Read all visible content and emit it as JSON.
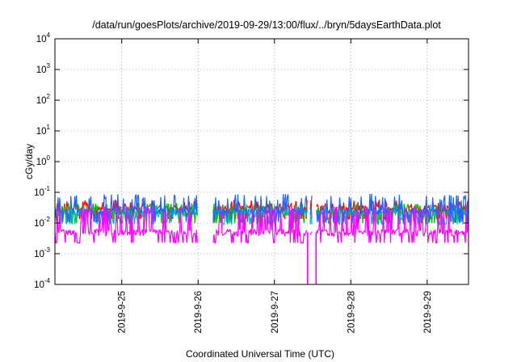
{
  "chart_data": {
    "type": "line",
    "title": "/data/run/goesPlots/archive/2019-09-29/13:00/flux/../bryn/5daysEarthData.plot",
    "xlabel": "Coordinated Universal Time (UTC)",
    "ylabel": "cGy/day",
    "yscale": "log",
    "ylim": [
      0.0001,
      10000
    ],
    "y_ticks": [
      {
        "base": "10",
        "exp": "-4",
        "value": 0.0001
      },
      {
        "base": "10",
        "exp": "-3",
        "value": 0.001
      },
      {
        "base": "10",
        "exp": "-2",
        "value": 0.01
      },
      {
        "base": "10",
        "exp": "-1",
        "value": 0.1
      },
      {
        "base": "10",
        "exp": "0",
        "value": 1
      },
      {
        "base": "10",
        "exp": "1",
        "value": 10
      },
      {
        "base": "10",
        "exp": "2",
        "value": 100
      },
      {
        "base": "10",
        "exp": "3",
        "value": 1000
      },
      {
        "base": "10",
        "exp": "4",
        "value": 10000
      }
    ],
    "xlim": [
      "2019-09-24T03:00",
      "2019-09-29T13:00"
    ],
    "x_ticks": [
      "2019-9-25",
      "2019-9-26",
      "2019-9-27",
      "2019-9-28",
      "2019-9-29"
    ],
    "grid": true,
    "legend": "none",
    "data_gaps": [
      [
        "2019-09-26T00:00",
        "2019-09-26T04:30"
      ],
      [
        "2019-09-27T10:30",
        "2019-09-27T11:00"
      ],
      [
        "2019-09-27T12:00",
        "2019-09-27T13:00"
      ]
    ],
    "series": [
      {
        "color": "#ff0000",
        "baseline": 0.03,
        "spike_max": 0.055
      },
      {
        "color": "#00c000",
        "baseline": 0.022,
        "spike_max": 0.045
      },
      {
        "color": "#00bcbc",
        "baseline": 0.02,
        "spike_max": 0.04
      },
      {
        "color": "#1e64ff",
        "baseline": 0.024,
        "spike_max": 0.09
      },
      {
        "color": "#ff00ff",
        "baseline": 0.005,
        "spike_max": 0.035
      }
    ]
  }
}
